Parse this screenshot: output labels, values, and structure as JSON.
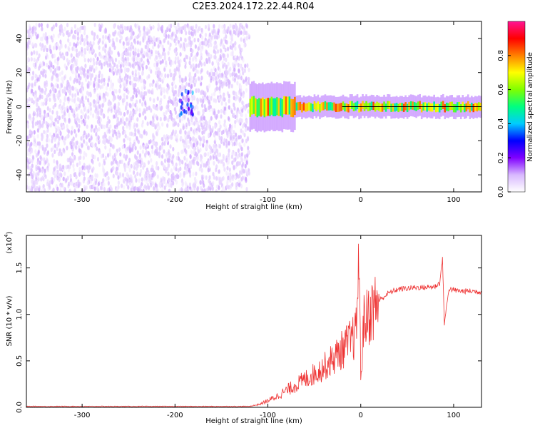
{
  "title": "C2E3.2024.172.22.44.R04",
  "chart_data": [
    {
      "type": "heatmap",
      "xlabel": "Height of straight line (km)",
      "ylabel": "Frequency (Hz)",
      "xlim": [
        -360,
        130
      ],
      "ylim": [
        -50,
        50
      ],
      "xticks": [
        -300,
        -200,
        -100,
        0,
        100
      ],
      "xtick_labels": [
        "-300",
        "-200",
        "-100",
        "0",
        "100"
      ],
      "yticks": [
        -40,
        -20,
        0,
        20,
        40
      ],
      "ytick_labels": [
        "-40",
        "-20",
        "0",
        "20",
        "40"
      ],
      "colorbar": {
        "label": "Normalized spectral amplitude",
        "range": [
          0,
          1
        ],
        "ticks": [
          0.0,
          0.2,
          0.4,
          0.6,
          0.8
        ],
        "tick_labels": [
          "0.0",
          "0.2",
          "0.4",
          "0.6",
          "0.8"
        ],
        "colors": [
          "#ffffff",
          "#d8b8ff",
          "#8000ff",
          "#0000ff",
          "#00ccff",
          "#00ff80",
          "#80ff00",
          "#ffff00",
          "#ff8000",
          "#ff0000",
          "#ff1493"
        ]
      },
      "regions": [
        {
          "x_range": [
            -360,
            -120
          ],
          "freq_range": [
            -50,
            48
          ],
          "amplitude": 0.08,
          "description_level": "noise"
        },
        {
          "x_range": [
            -195,
            -180
          ],
          "freq_range": [
            -5,
            10
          ],
          "amplitude": 0.3
        },
        {
          "x_range": [
            -120,
            130
          ],
          "freq_center": 0,
          "freq_halfwidth": 4,
          "amplitude": 0.85
        }
      ],
      "center_line": {
        "x_range": [
          -20,
          130
        ],
        "freq": 0,
        "color": "#000000"
      }
    },
    {
      "type": "line",
      "xlabel": "Height of straight line (km)",
      "ylabel": "SNR (10 * v/v)",
      "y_multiplier_label": "(x10",
      "y_multiplier_exponent": "4",
      "y_multiplier_close": ")",
      "xlim": [
        -360,
        130
      ],
      "ylim": [
        0,
        1.85
      ],
      "xticks": [
        -300,
        -200,
        -100,
        0,
        100
      ],
      "xtick_labels": [
        "-300",
        "-200",
        "-100",
        "0",
        "100"
      ],
      "yticks": [
        0.0,
        0.5,
        1.0,
        1.5
      ],
      "ytick_labels": [
        "0.0",
        "0.5",
        "1.0",
        "1.5"
      ],
      "series": [
        {
          "color": "#ee3333",
          "x": [
            -360,
            -300,
            -200,
            -120,
            -110,
            -100,
            -90,
            -80,
            -70,
            -60,
            -50,
            -40,
            -30,
            -20,
            -10,
            -5,
            -2,
            0,
            3,
            10,
            20,
            30,
            40,
            50,
            60,
            70,
            80,
            85,
            88,
            90,
            95,
            100,
            110,
            120,
            130
          ],
          "y": [
            0.01,
            0.01,
            0.01,
            0.01,
            0.03,
            0.07,
            0.12,
            0.18,
            0.24,
            0.3,
            0.36,
            0.43,
            0.52,
            0.62,
            0.72,
            0.8,
            1.7,
            0.3,
            0.9,
            1.02,
            1.15,
            1.23,
            1.27,
            1.28,
            1.29,
            1.29,
            1.3,
            1.34,
            1.6,
            0.9,
            1.28,
            1.26,
            1.25,
            1.25,
            1.24
          ]
        }
      ]
    }
  ]
}
